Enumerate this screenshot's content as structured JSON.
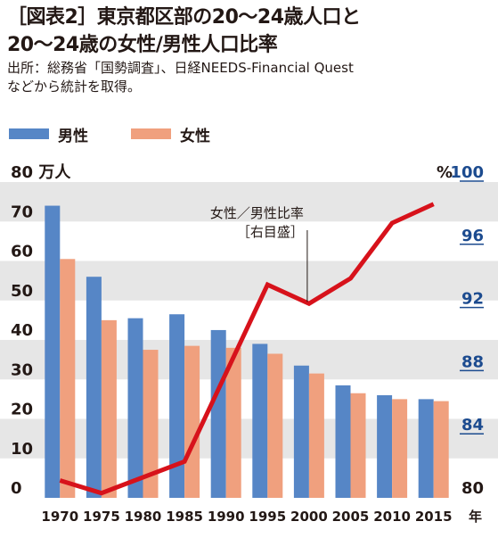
{
  "title": {
    "line1": "［図表2］東京都区部の20〜24歳人口と",
    "line2": "20〜24歳の女性/男性人口比率"
  },
  "source": {
    "line1": "出所：総務省「国勢調査」、日経NEEDS-Financial Quest",
    "line2": "などから統計を取得。"
  },
  "legend": {
    "male": "男性",
    "female": "女性"
  },
  "colors": {
    "male": "#5686c6",
    "female": "#f0a07e",
    "ratio_line": "#d7121b",
    "band": "#e6e6e6",
    "right_axis_text": "#1c4b8f"
  },
  "chart_data": {
    "type": "bar",
    "categories": [
      "1970",
      "1975",
      "1980",
      "1985",
      "1990",
      "1995",
      "2000",
      "2005",
      "2010",
      "2015"
    ],
    "series": [
      {
        "name": "男性",
        "values": [
          74,
          56,
          45.5,
          46.5,
          42.5,
          39,
          33.5,
          28.5,
          26,
          25
        ]
      },
      {
        "name": "女性",
        "values": [
          60.5,
          45,
          37.5,
          38.5,
          38,
          36.5,
          31.5,
          26.5,
          25,
          24.5
        ]
      }
    ],
    "ratio_series": {
      "name": "女性／男性比率",
      "axis": "right",
      "values": [
        81.1,
        80.3,
        81.3,
        82.3,
        87.9,
        93.5,
        92.3,
        93.9,
        97.4,
        98.6
      ]
    },
    "ratio_label": {
      "line1": "女性／男性比率",
      "line2": "［右目盛］"
    },
    "left_axis": {
      "unit": "80 万人",
      "ylim": [
        0,
        80
      ],
      "ticks": [
        "0",
        "10",
        "20",
        "30",
        "40",
        "50",
        "60",
        "70"
      ]
    },
    "right_axis": {
      "unit_prefix": "%",
      "ylim": [
        80,
        100
      ],
      "ticks": [
        "80",
        "84",
        "88",
        "92",
        "96",
        "100"
      ]
    },
    "x_unit": "年",
    "grid": "alternating horizontal bands"
  }
}
